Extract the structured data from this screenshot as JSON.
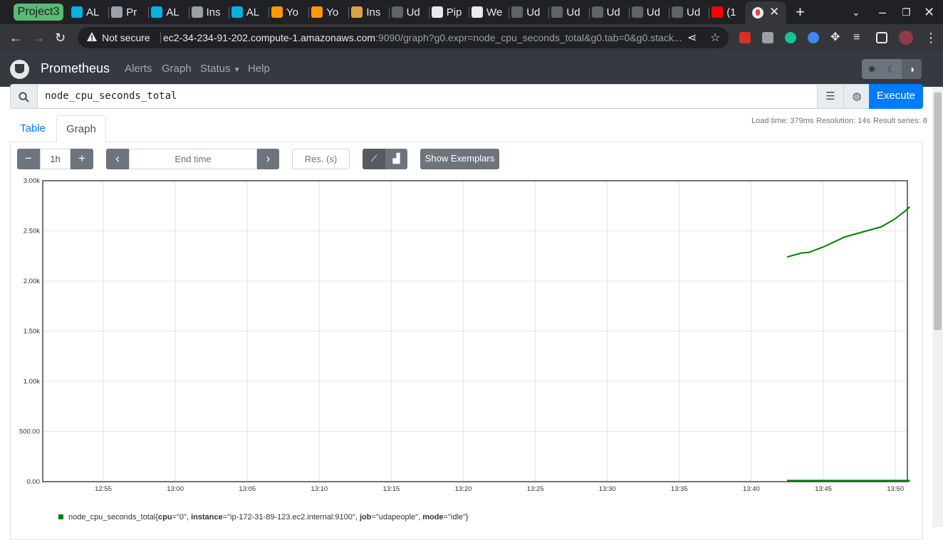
{
  "browser": {
    "group_label": "Project3",
    "tabs": [
      {
        "label": "AL",
        "icon": "udacity-icon",
        "color": "#02b3e4"
      },
      {
        "label": "Pr",
        "icon": "page-icon",
        "color": "#9aa0a6"
      },
      {
        "label": "AL",
        "icon": "udacity-icon",
        "color": "#02b3e4"
      },
      {
        "label": "Ins",
        "icon": "page-icon",
        "color": "#9aa0a6"
      },
      {
        "label": "AL",
        "icon": "udacity-icon",
        "color": "#02b3e4"
      },
      {
        "label": "Yo",
        "icon": "cube-icon",
        "color": "#ff9900"
      },
      {
        "label": "Yo",
        "icon": "cube-icon",
        "color": "#ff9900"
      },
      {
        "label": "Ins",
        "icon": "box-icon",
        "color": "#d9a441"
      },
      {
        "label": "Ud",
        "icon": "github-icon",
        "color": "#5f6368"
      },
      {
        "label": "Pip",
        "icon": "circle-icon",
        "color": "#e8eaed"
      },
      {
        "label": "We",
        "icon": "globe-icon",
        "color": "#e8eaed"
      },
      {
        "label": "Ud",
        "icon": "github-icon",
        "color": "#5f6368"
      },
      {
        "label": "Ud",
        "icon": "github-icon",
        "color": "#5f6368"
      },
      {
        "label": "Ud",
        "icon": "github-icon",
        "color": "#5f6368"
      },
      {
        "label": "Ud",
        "icon": "github-icon",
        "color": "#5f6368"
      },
      {
        "label": "Ud",
        "icon": "github-icon",
        "color": "#5f6368"
      },
      {
        "label": "(1",
        "icon": "youtube-icon",
        "color": "#ff0000"
      }
    ],
    "security_label": "Not secure",
    "url_host": "ec2-34-234-91-202.compute-1.amazonaws.com",
    "url_rest": ":9090/graph?g0.expr=node_cpu_seconds_total&g0.tab=0&g0.stack..."
  },
  "nav": {
    "brand": "Prometheus",
    "links": [
      "Alerts",
      "Graph",
      "Status",
      "Help"
    ]
  },
  "query": {
    "expression": "node_cpu_seconds_total",
    "execute_label": "Execute"
  },
  "stats": {
    "load_time": "Load time: 379ms",
    "resolution": "Resolution: 14s",
    "result_series": "Result series: 8"
  },
  "tabs": {
    "table": "Table",
    "graph": "Graph"
  },
  "controls": {
    "minus": "−",
    "range": "1h",
    "plus": "+",
    "end_time_placeholder": "End time",
    "resolution_placeholder": "Res. (s)",
    "exemplars_label": "Show Exemplars"
  },
  "chart_data": {
    "type": "line",
    "y_ticks": [
      "0.00",
      "500.00",
      "1.00k",
      "1.50k",
      "2.00k",
      "2.50k",
      "3.00k"
    ],
    "x_ticks": [
      "12:55",
      "13:00",
      "13:05",
      "13:10",
      "13:15",
      "13:20",
      "13:25",
      "13:30",
      "13:35",
      "13:40",
      "13:45",
      "13:50"
    ],
    "ylim": [
      0,
      3000
    ],
    "xlim_minutes": [
      12.9,
      13.85
    ],
    "grid": true,
    "colors": {
      "series": "#008000",
      "grid": "#e5e5e5",
      "frame": "#444444"
    },
    "series": [
      {
        "x": [
          13.708,
          13.725,
          13.733,
          13.75,
          13.775,
          13.8,
          13.817,
          13.833,
          13.845,
          13.85
        ],
        "values": [
          2240,
          2280,
          2285,
          2340,
          2440,
          2500,
          2540,
          2620,
          2700,
          2740
        ]
      },
      {
        "x": [
          13.708,
          13.85
        ],
        "values": [
          8,
          8
        ]
      }
    ]
  },
  "legend": {
    "metric": "node_cpu_seconds_total",
    "cpu_key": "cpu",
    "cpu_val": "\"0\"",
    "instance_key": "instance",
    "instance_val": "\"ip-172-31-89-123.ec2.internal:9100\"",
    "job_key": "job",
    "job_val": "\"udapeople\"",
    "mode_key": "mode",
    "mode_val": "\"idle\""
  }
}
